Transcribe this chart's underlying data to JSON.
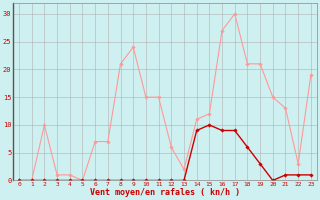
{
  "x": [
    0,
    1,
    2,
    3,
    4,
    5,
    6,
    7,
    8,
    9,
    10,
    11,
    12,
    13,
    14,
    15,
    16,
    17,
    18,
    19,
    20,
    21,
    22,
    23
  ],
  "rafales": [
    0,
    0,
    10,
    1,
    1,
    0,
    7,
    7,
    21,
    24,
    15,
    15,
    6,
    2,
    11,
    12,
    27,
    30,
    21,
    21,
    15,
    13,
    3,
    19
  ],
  "moyen": [
    0,
    0,
    0,
    0,
    0,
    0,
    0,
    0,
    0,
    0,
    0,
    0,
    0,
    0,
    9,
    10,
    9,
    9,
    6,
    3,
    0,
    1,
    1,
    1
  ],
  "color_rafales": "#ff9999",
  "color_moyen": "#cc0000",
  "bg_color": "#cff0f0",
  "grid_color": "#b0b0b0",
  "xlabel": "Vent moyen/en rafales ( kn/h )",
  "xlabel_color": "#cc0000",
  "ylabel_ticks": [
    0,
    5,
    10,
    15,
    20,
    25,
    30
  ],
  "ylim": [
    0,
    32
  ],
  "xlim": [
    -0.5,
    23.5
  ]
}
